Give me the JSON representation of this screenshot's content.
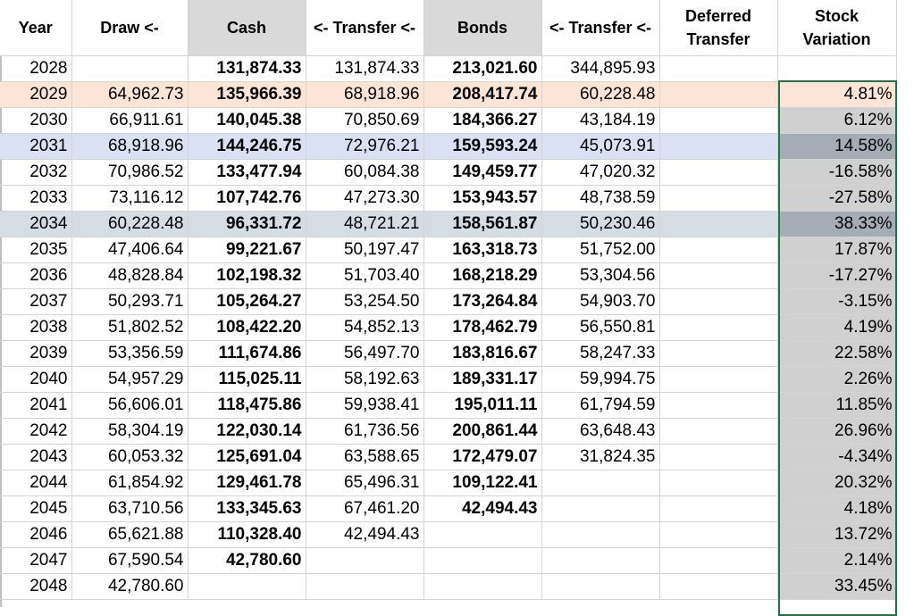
{
  "headers": [
    "Year",
    "Draw <-",
    "Cash",
    "<- Transfer <-",
    "Bonds",
    "<- Transfer <-",
    "Deferred Transfer",
    "Stock Variation"
  ],
  "rows": [
    {
      "year": "2028",
      "draw": "",
      "cash": "131,874.33",
      "transfer1": "131,874.33",
      "bonds": "213,021.60",
      "transfer2": "344,895.93",
      "deferred": "",
      "stock": ""
    },
    {
      "year": "2029",
      "draw": "64,962.73",
      "cash": "135,966.39",
      "transfer1": "68,918.96",
      "bonds": "208,417.74",
      "transfer2": "60,228.48",
      "deferred": "",
      "stock": "4.81%"
    },
    {
      "year": "2030",
      "draw": "66,911.61",
      "cash": "140,045.38",
      "transfer1": "70,850.69",
      "bonds": "184,366.27",
      "transfer2": "43,184.19",
      "deferred": "",
      "stock": "6.12%"
    },
    {
      "year": "2031",
      "draw": "68,918.96",
      "cash": "144,246.75",
      "transfer1": "72,976.21",
      "bonds": "159,593.24",
      "transfer2": "45,073.91",
      "deferred": "",
      "stock": "14.58%"
    },
    {
      "year": "2032",
      "draw": "70,986.52",
      "cash": "133,477.94",
      "transfer1": "60,084.38",
      "bonds": "149,459.77",
      "transfer2": "47,020.32",
      "deferred": "",
      "stock": "-16.58%"
    },
    {
      "year": "2033",
      "draw": "73,116.12",
      "cash": "107,742.76",
      "transfer1": "47,273.30",
      "bonds": "153,943.57",
      "transfer2": "48,738.59",
      "deferred": "",
      "stock": "-27.58%"
    },
    {
      "year": "2034",
      "draw": "60,228.48",
      "cash": "96,331.72",
      "transfer1": "48,721.21",
      "bonds": "158,561.87",
      "transfer2": "50,230.46",
      "deferred": "",
      "stock": "38.33%"
    },
    {
      "year": "2035",
      "draw": "47,406.64",
      "cash": "99,221.67",
      "transfer1": "50,197.47",
      "bonds": "163,318.73",
      "transfer2": "51,752.00",
      "deferred": "",
      "stock": "17.87%"
    },
    {
      "year": "2036",
      "draw": "48,828.84",
      "cash": "102,198.32",
      "transfer1": "51,703.40",
      "bonds": "168,218.29",
      "transfer2": "53,304.56",
      "deferred": "",
      "stock": "-17.27%"
    },
    {
      "year": "2037",
      "draw": "50,293.71",
      "cash": "105,264.27",
      "transfer1": "53,254.50",
      "bonds": "173,264.84",
      "transfer2": "54,903.70",
      "deferred": "",
      "stock": "-3.15%"
    },
    {
      "year": "2038",
      "draw": "51,802.52",
      "cash": "108,422.20",
      "transfer1": "54,852.13",
      "bonds": "178,462.79",
      "transfer2": "56,550.81",
      "deferred": "",
      "stock": "4.19%"
    },
    {
      "year": "2039",
      "draw": "53,356.59",
      "cash": "111,674.86",
      "transfer1": "56,497.70",
      "bonds": "183,816.67",
      "transfer2": "58,247.33",
      "deferred": "",
      "stock": "22.58%"
    },
    {
      "year": "2040",
      "draw": "54,957.29",
      "cash": "115,025.11",
      "transfer1": "58,192.63",
      "bonds": "189,331.17",
      "transfer2": "59,994.75",
      "deferred": "",
      "stock": "2.26%"
    },
    {
      "year": "2041",
      "draw": "56,606.01",
      "cash": "118,475.86",
      "transfer1": "59,938.41",
      "bonds": "195,011.11",
      "transfer2": "61,794.59",
      "deferred": "",
      "stock": "11.85%"
    },
    {
      "year": "2042",
      "draw": "58,304.19",
      "cash": "122,030.14",
      "transfer1": "61,736.56",
      "bonds": "200,861.44",
      "transfer2": "63,648.43",
      "deferred": "",
      "stock": "26.96%"
    },
    {
      "year": "2043",
      "draw": "60,053.32",
      "cash": "125,691.04",
      "transfer1": "63,588.65",
      "bonds": "172,479.07",
      "transfer2": "31,824.35",
      "deferred": "",
      "stock": "-4.34%"
    },
    {
      "year": "2044",
      "draw": "61,854.92",
      "cash": "129,461.78",
      "transfer1": "65,496.31",
      "bonds": "109,122.41",
      "transfer2": "",
      "deferred": "",
      "stock": "20.32%"
    },
    {
      "year": "2045",
      "draw": "63,710.56",
      "cash": "133,345.63",
      "transfer1": "67,461.20",
      "bonds": "42,494.43",
      "transfer2": "",
      "deferred": "",
      "stock": "4.18%"
    },
    {
      "year": "2046",
      "draw": "65,621.88",
      "cash": "110,328.40",
      "transfer1": "42,494.43",
      "bonds": "",
      "transfer2": "",
      "deferred": "",
      "stock": "13.72%"
    },
    {
      "year": "2047",
      "draw": "67,590.54",
      "cash": "42,780.60",
      "transfer1": "",
      "bonds": "",
      "transfer2": "",
      "deferred": "",
      "stock": "2.14%"
    },
    {
      "year": "2048",
      "draw": "42,780.60",
      "cash": "",
      "transfer1": "",
      "bonds": "",
      "transfer2": "",
      "deferred": "",
      "stock": "33.45%"
    }
  ],
  "highlights": {
    "2029": "orange",
    "2031": "blue",
    "2034": "gray"
  },
  "colors": {
    "selection": "#217346",
    "orange_row": "#fce4d6",
    "blue_row": "#d9e1f2",
    "gray_row": "#d6dce4"
  }
}
